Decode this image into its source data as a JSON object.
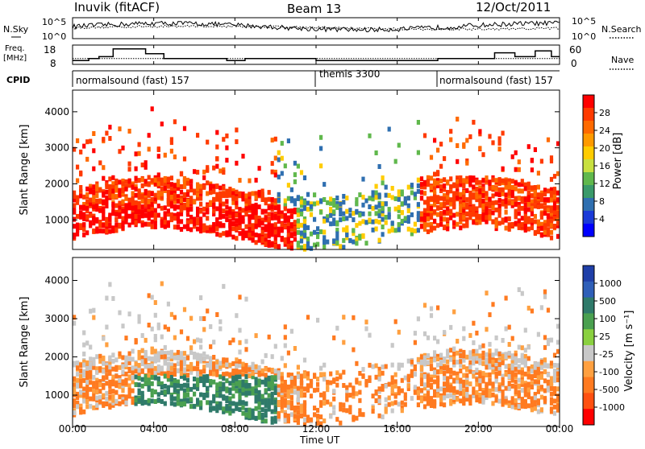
{
  "header": {
    "station": "Inuvik (fitACF)",
    "beam": "Beam 13",
    "date": "12/Oct/2011"
  },
  "left_labels": {
    "nsky": "N.Sky",
    "freq_line1": "Freq.",
    "freq_line2": "[MHz]",
    "cpid": "CPID"
  },
  "right_labels": {
    "nsearch": "N.Search",
    "nave": "Nave"
  },
  "noise_axis": {
    "left_top": "10^5",
    "left_bottom": "10^0",
    "right_top": "10^5",
    "right_bottom": "10^0"
  },
  "freq_axis": {
    "left_ticks": [
      "18",
      "8"
    ],
    "right_ticks": [
      "60",
      "0"
    ]
  },
  "cpid_segments": [
    {
      "label": "normalsound (fast) 157",
      "start_hour": 0,
      "end_hour": 12
    },
    {
      "label": "themis 3300",
      "start_hour": 12,
      "end_hour": 18
    },
    {
      "label": "normalsound (fast) 157",
      "start_hour": 18,
      "end_hour": 24
    }
  ],
  "power_panel": {
    "ylabel": "Slant Range [km]",
    "colorbar_label": "Power [dB]",
    "colorbar_ticks": [
      "28",
      "24",
      "20",
      "16",
      "12",
      "8",
      "4"
    ],
    "colorbar_colors": [
      "#ff0000",
      "#ff3a00",
      "#ff6a00",
      "#ff9a00",
      "#ffcc00",
      "#c8e040",
      "#60b84c",
      "#3a9a6a",
      "#2f6fb0",
      "#1a3ad8",
      "#0000ff"
    ]
  },
  "velocity_panel": {
    "ylabel": "Slant Range [km]",
    "colorbar_label": "Velocity [m s⁻¹]",
    "colorbar_ticks": [
      "1000",
      "500",
      "100",
      "25",
      "-25",
      "-100",
      "-500",
      "-1000"
    ],
    "colorbar_colors": [
      "#1f3fa8",
      "#2f5fb8",
      "#2f7a6a",
      "#4aa050",
      "#8ad040",
      "#c8c8c8",
      "#ffa040",
      "#ff7a20",
      "#ff5010",
      "#ff0000"
    ]
  },
  "chart_data": {
    "type": "heatmap",
    "title": "Inuvik (fitACF)  Beam 13  12/Oct/2011",
    "xlabel": "Time UT",
    "x_ticks": [
      "00:00",
      "04:00",
      "08:00",
      "12:00",
      "16:00",
      "20:00",
      "00:00"
    ],
    "xlim_hours": [
      0,
      24
    ],
    "ylim_km": [
      180,
      4600
    ],
    "y_ticks": [
      1000,
      2000,
      3000,
      4000
    ],
    "freq_mhz_range": [
      8,
      18
    ],
    "nave_range": [
      0,
      60
    ],
    "panels": [
      {
        "name": "Power",
        "units": "dB",
        "range": [
          0,
          30
        ]
      },
      {
        "name": "Velocity",
        "units": "m s-1",
        "range": [
          -1000,
          1000
        ]
      }
    ]
  }
}
